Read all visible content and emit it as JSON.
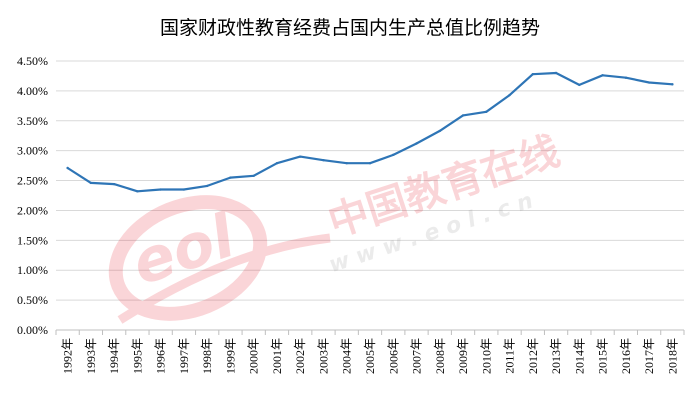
{
  "chart_data": {
    "type": "line",
    "title": "国家财政性教育经费占国内生产总值比例趋势",
    "xlabel": "",
    "ylabel": "",
    "categories": [
      "1992年",
      "1993年",
      "1994年",
      "1995年",
      "1996年",
      "1997年",
      "1998年",
      "1999年",
      "2000年",
      "2001年",
      "2002年",
      "2003年",
      "2004年",
      "2005年",
      "2006年",
      "2007年",
      "2008年",
      "2009年",
      "2010年",
      "2011年",
      "2012年",
      "2013年",
      "2014年",
      "2015年",
      "2016年",
      "2017年",
      "2018年"
    ],
    "values": [
      2.71,
      2.46,
      2.44,
      2.32,
      2.35,
      2.35,
      2.41,
      2.55,
      2.58,
      2.79,
      2.9,
      2.84,
      2.79,
      2.79,
      2.93,
      3.12,
      3.33,
      3.59,
      3.65,
      3.93,
      4.28,
      4.3,
      4.1,
      4.26,
      4.22,
      4.14,
      4.11
    ],
    "yticks": [
      "0.00%",
      "0.50%",
      "1.00%",
      "1.50%",
      "2.00%",
      "2.50%",
      "3.00%",
      "3.50%",
      "4.00%",
      "4.50%"
    ],
    "ylim": [
      0,
      4.5
    ],
    "grid": true,
    "line_color": "#2E75B6"
  },
  "watermark": {
    "logo_text": "eol",
    "brand": "中国教育在线",
    "url": "w w w . e o l . c n",
    "color": "#E60012"
  }
}
